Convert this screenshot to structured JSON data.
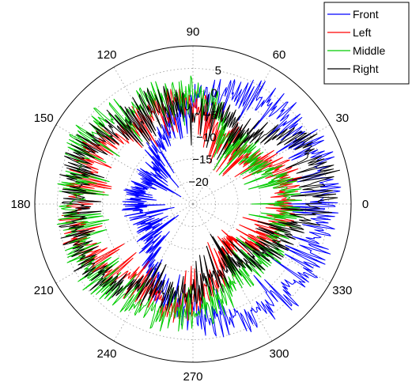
{
  "chart_data": {
    "type": "polar-line",
    "title": "",
    "angle_unit": "degrees",
    "angle_ticks": [
      0,
      30,
      60,
      90,
      120,
      150,
      180,
      210,
      240,
      270,
      300,
      330
    ],
    "angle_tick_labels": [
      "0",
      "30",
      "60",
      "90",
      "120",
      "150",
      "180",
      "210",
      "240",
      "270",
      "300",
      "330"
    ],
    "radial_range": [
      -25,
      10
    ],
    "radial_ticks": [
      -20,
      -15,
      -10,
      -5,
      0,
      5
    ],
    "radial_tick_labels": [
      "−20",
      "−15",
      "−10",
      "−5",
      "0",
      "5"
    ],
    "grid": true,
    "legend_position": "top-right",
    "colors": {
      "Front": "#0000ff",
      "Left": "#ff0000",
      "Middle": "#00cc00",
      "Right": "#000000"
    },
    "series": [
      {
        "name": "Front",
        "angles": [
          0,
          15,
          30,
          45,
          60,
          75,
          90,
          105,
          120,
          135,
          150,
          165,
          180,
          195,
          210,
          225,
          240,
          255,
          270,
          285,
          300,
          315,
          330,
          345,
          360
        ],
        "values": [
          4,
          5,
          5,
          4,
          3,
          1,
          -2,
          -6,
          -10,
          -13,
          -14,
          -13,
          -12,
          -13,
          -14,
          -12,
          -8,
          -3,
          0,
          2,
          3,
          4,
          4,
          4,
          4
        ]
      },
      {
        "name": "Left",
        "angles": [
          0,
          15,
          30,
          45,
          60,
          75,
          90,
          105,
          120,
          135,
          150,
          165,
          180,
          195,
          210,
          225,
          240,
          255,
          270,
          285,
          300,
          315,
          330,
          345,
          360
        ],
        "values": [
          -5,
          -3,
          -6,
          -10,
          -8,
          -6,
          -2,
          -2,
          -3,
          -2,
          0,
          0,
          1,
          2,
          0,
          -2,
          -3,
          -1,
          -3,
          -7,
          -10,
          -12,
          -8,
          -6,
          -5
        ]
      },
      {
        "name": "Middle",
        "angles": [
          0,
          15,
          30,
          45,
          60,
          75,
          90,
          105,
          120,
          135,
          150,
          165,
          180,
          195,
          210,
          225,
          240,
          255,
          270,
          285,
          300,
          315,
          330,
          345,
          360
        ],
        "values": [
          -4,
          -4,
          -9,
          -8,
          -9,
          -3,
          0,
          0,
          0,
          2,
          3,
          2,
          2,
          2,
          3,
          2,
          1,
          1,
          0,
          -2,
          -6,
          -6,
          -4,
          -4,
          -4
        ]
      },
      {
        "name": "Right",
        "angles": [
          0,
          15,
          30,
          45,
          60,
          75,
          90,
          105,
          120,
          135,
          150,
          165,
          180,
          195,
          210,
          225,
          240,
          255,
          270,
          285,
          300,
          315,
          330,
          345,
          360
        ],
        "values": [
          4,
          5,
          3,
          -3,
          -6,
          -4,
          -4,
          -1,
          -1,
          0,
          2,
          2,
          1,
          2,
          2,
          1,
          -3,
          -4,
          -5,
          -7,
          -9,
          -7,
          -5,
          -2,
          4
        ]
      }
    ]
  }
}
